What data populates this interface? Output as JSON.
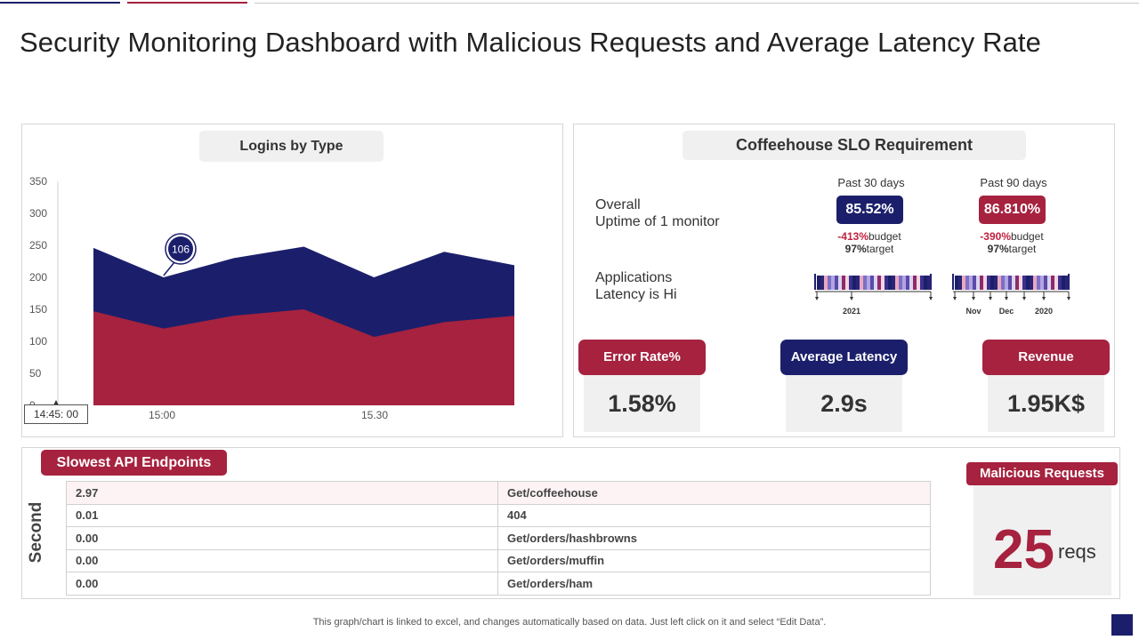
{
  "page": {
    "title": "Security Monitoring Dashboard with Malicious Requests and Average Latency Rate",
    "footer_note": "This graph/chart is linked to excel,  and changes automatically based on data. Just left click on it and select “Edit Data”."
  },
  "colors": {
    "navy": "#1b1f6b",
    "crimson": "#a6223f",
    "panel_grey": "#f0f0f0"
  },
  "logins_chart": {
    "heading": "Logins by Type",
    "time_start": "14:45: 00",
    "callout": "106"
  },
  "chart_data": {
    "type": "area",
    "title": "Logins by Type",
    "stacked": false,
    "ylim": [
      0,
      350
    ],
    "yticks": [
      "350",
      "300",
      "250",
      "200",
      "150",
      "100",
      "50",
      "0"
    ],
    "xtick_labels": [
      "15:00",
      "15.30"
    ],
    "x": [
      1,
      2,
      3,
      4,
      5,
      6,
      7
    ],
    "series": [
      {
        "color": "#1b1f6b",
        "values": [
          246,
          200,
          230,
          248,
          200,
          240,
          219
        ]
      },
      {
        "color": "#a6223f",
        "values": [
          147,
          120,
          140,
          150,
          107,
          130,
          140
        ]
      }
    ],
    "annotations": [
      {
        "x": 2,
        "text": "106"
      }
    ]
  },
  "slo": {
    "heading": "Coffeehouse SLO Requirement",
    "uptime_label_1": "Overall",
    "uptime_label_2": "Uptime of 1 monitor",
    "latency_label_1": "Applications",
    "latency_label_2": "Latency is Hi",
    "past30": {
      "label": "Past 30 days",
      "value": "85.52%",
      "budget_pct": "-413%",
      "budget_word": "budget",
      "target_pct": "97%",
      "target_word": "target"
    },
    "past90": {
      "label": "Past 90 days",
      "value": "86.810%",
      "budget_pct": "-390%",
      "budget_word": "budget",
      "target_pct": "97%",
      "target_word": "target"
    },
    "timeline30_labels": [
      "2021"
    ],
    "timeline90_labels": [
      "Nov",
      "Dec",
      "2020"
    ]
  },
  "kpis": [
    {
      "label": "Error Rate%",
      "value": "1.58%"
    },
    {
      "label": "Average Latency",
      "value": "2.9s"
    },
    {
      "label": "Revenue",
      "value": "1.95K$"
    }
  ],
  "api": {
    "heading": "Slowest API Endpoints",
    "axis_label": "Second",
    "rows": [
      {
        "value": "2.97",
        "endpoint": "Get/coffeehouse"
      },
      {
        "value": "0.01",
        "endpoint": "404"
      },
      {
        "value": "0.00",
        "endpoint": "Get/orders/hashbrowns"
      },
      {
        "value": "0.00",
        "endpoint": "Get/orders/muffin"
      },
      {
        "value": "0.00",
        "endpoint": "Get/orders/ham"
      }
    ]
  },
  "malicious": {
    "heading": "Malicious Requests",
    "count": "25",
    "unit": "reqs"
  }
}
